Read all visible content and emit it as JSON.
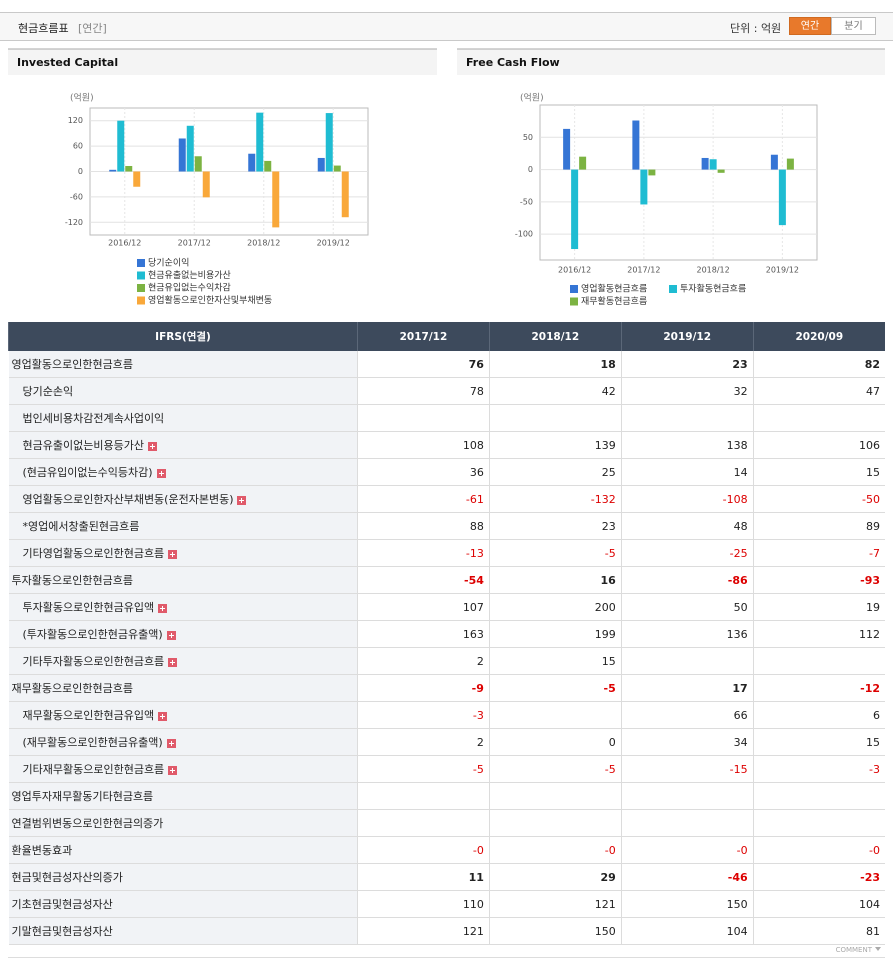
{
  "header": {
    "title": "현금흐름표",
    "period": "[연간]",
    "unit": "단위 : 억원",
    "tabs": [
      "연간",
      "분기"
    ],
    "active_tab": 0
  },
  "chart_data": [
    {
      "type": "bar",
      "title": "Invested Capital",
      "y_label": "(억원)",
      "categories": [
        "2016/12",
        "2017/12",
        "2018/12",
        "2019/12"
      ],
      "series": [
        {
          "name": "당기순이익",
          "color": "#3575d5",
          "values": [
            4,
            78,
            42,
            32
          ]
        },
        {
          "name": "현금유출없는비용가산",
          "color": "#1fbcd2",
          "values": [
            120,
            108,
            139,
            138
          ]
        },
        {
          "name": "현금유입없는수익차감",
          "color": "#7cb342",
          "values": [
            13,
            36,
            25,
            14
          ]
        },
        {
          "name": "영업활동으로인한자산및부채변동",
          "color": "#f9a83a",
          "values": [
            -36,
            -61,
            -132,
            -108
          ]
        }
      ],
      "ylim": [
        -150,
        150
      ],
      "yticks": [
        -120,
        -60,
        0,
        60,
        120
      ],
      "grid": true
    },
    {
      "type": "bar",
      "title": "Free Cash Flow",
      "y_label": "(억원)",
      "categories": [
        "2016/12",
        "2017/12",
        "2018/12",
        "2019/12"
      ],
      "series": [
        {
          "name": "영업활동현금흐름",
          "color": "#3575d5",
          "values": [
            63,
            76,
            18,
            23
          ]
        },
        {
          "name": "투자활동현금흐름",
          "color": "#1fbcd2",
          "values": [
            -123,
            -54,
            16,
            -86
          ]
        },
        {
          "name": "재무활동현금흐름",
          "color": "#7cb342",
          "values": [
            20,
            -9,
            -5,
            17
          ]
        }
      ],
      "ylim": [
        -140,
        100
      ],
      "yticks": [
        -100,
        -50,
        0,
        50
      ],
      "grid": true
    }
  ],
  "table": {
    "columns": [
      "IFRS(연결)",
      "2017/12",
      "2018/12",
      "2019/12",
      "2020/09"
    ],
    "rows": [
      {
        "label": "영업활동으로인한현금흐름",
        "values": [
          "76",
          "18",
          "23",
          "82"
        ],
        "level": 0,
        "bold": true,
        "expand": false
      },
      {
        "label": "당기순손익",
        "values": [
          "78",
          "42",
          "32",
          "47"
        ],
        "level": 1,
        "bold": false,
        "expand": false
      },
      {
        "label": "법인세비용차감전계속사업이익",
        "values": [
          null,
          null,
          null,
          null
        ],
        "level": 1,
        "bold": false,
        "expand": false
      },
      {
        "label": "현금유출이없는비용등가산",
        "values": [
          "108",
          "139",
          "138",
          "106"
        ],
        "level": 1,
        "bold": false,
        "expand": true
      },
      {
        "label": "(현금유입이없는수익등차감)",
        "values": [
          "36",
          "25",
          "14",
          "15"
        ],
        "level": 1,
        "bold": false,
        "expand": true
      },
      {
        "label": "영업활동으로인한자산부채변동(운전자본변동)",
        "values": [
          "-61",
          "-132",
          "-108",
          "-50"
        ],
        "level": 1,
        "bold": false,
        "expand": true
      },
      {
        "label": "*영업에서창출된현금흐름",
        "values": [
          "88",
          "23",
          "48",
          "89"
        ],
        "level": 1,
        "bold": false,
        "expand": false
      },
      {
        "label": "기타영업활동으로인한현금흐름",
        "values": [
          "-13",
          "-5",
          "-25",
          "-7"
        ],
        "level": 1,
        "bold": false,
        "expand": true
      },
      {
        "label": "투자활동으로인한현금흐름",
        "values": [
          "-54",
          "16",
          "-86",
          "-93"
        ],
        "level": 0,
        "bold": true,
        "expand": false
      },
      {
        "label": "투자활동으로인한현금유입액",
        "values": [
          "107",
          "200",
          "50",
          "19"
        ],
        "level": 1,
        "bold": false,
        "expand": true
      },
      {
        "label": "(투자활동으로인한현금유출액)",
        "values": [
          "163",
          "199",
          "136",
          "112"
        ],
        "level": 1,
        "bold": false,
        "expand": true
      },
      {
        "label": "기타투자활동으로인한현금흐름",
        "values": [
          "2",
          "15",
          null,
          null
        ],
        "level": 1,
        "bold": false,
        "expand": true
      },
      {
        "label": "재무활동으로인한현금흐름",
        "values": [
          "-9",
          "-5",
          "17",
          "-12"
        ],
        "level": 0,
        "bold": true,
        "expand": false
      },
      {
        "label": "재무활동으로인한현금유입액",
        "values": [
          "-3",
          null,
          "66",
          "6"
        ],
        "level": 1,
        "bold": false,
        "expand": true
      },
      {
        "label": "(재무활동으로인한현금유출액)",
        "values": [
          "2",
          "0",
          "34",
          "15"
        ],
        "level": 1,
        "bold": false,
        "expand": true
      },
      {
        "label": "기타재무활동으로인한현금흐름",
        "values": [
          "-5",
          "-5",
          "-15",
          "-3"
        ],
        "level": 1,
        "bold": false,
        "expand": true
      },
      {
        "label": "영업투자재무활동기타현금흐름",
        "values": [
          null,
          null,
          null,
          null
        ],
        "level": 0,
        "bold": false,
        "expand": false
      },
      {
        "label": "연결범위변동으로인한현금의증가",
        "values": [
          null,
          null,
          null,
          null
        ],
        "level": 0,
        "bold": false,
        "expand": false
      },
      {
        "label": "환율변동효과",
        "values": [
          "-0",
          "-0",
          "-0",
          "-0"
        ],
        "level": 0,
        "bold": false,
        "expand": false
      },
      {
        "label": "현금및현금성자산의증가",
        "values": [
          "11",
          "29",
          "-46",
          "-23"
        ],
        "level": 0,
        "bold": true,
        "expand": false
      },
      {
        "label": "기초현금및현금성자산",
        "values": [
          "110",
          "121",
          "150",
          "104"
        ],
        "level": 0,
        "bold": false,
        "expand": false
      },
      {
        "label": "기말현금및현금성자산",
        "values": [
          "121",
          "150",
          "104",
          "81"
        ],
        "level": 0,
        "bold": false,
        "expand": false
      }
    ]
  },
  "footer": "COMMENT"
}
